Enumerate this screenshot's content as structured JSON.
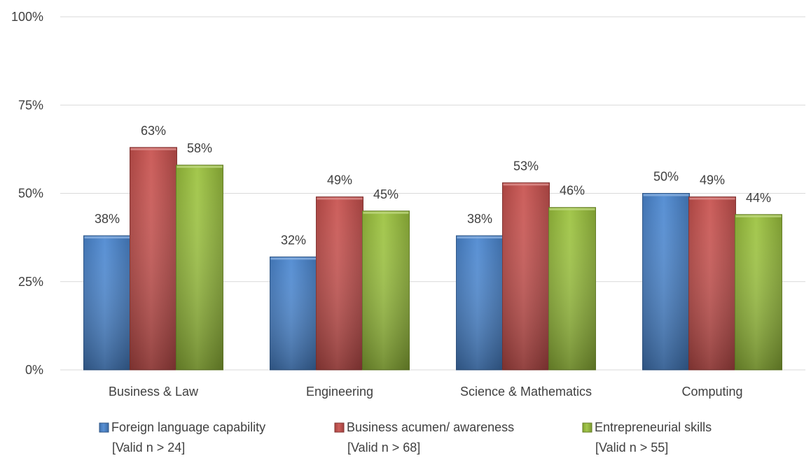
{
  "chart_data": {
    "type": "bar",
    "categories": [
      "Business & Law",
      "Engineering",
      "Science & Mathematics",
      "Computing"
    ],
    "series": [
      {
        "name": "Foreign language capability",
        "note": "[Valid n > 24]",
        "color": "#4a86d0",
        "values": [
          38,
          32,
          38,
          50
        ],
        "labels": [
          "38%",
          "32%",
          "38%",
          "50%"
        ]
      },
      {
        "name": "Business acumen/ awareness",
        "note": "[Valid n > 68]",
        "color": "#c8504d",
        "values": [
          63,
          49,
          53,
          49
        ],
        "labels": [
          "63%",
          "49%",
          "53%",
          "49%"
        ]
      },
      {
        "name": "Entrepreneurial skills",
        "note": "[Valid n > 55]",
        "color": "#9bc23c",
        "values": [
          58,
          45,
          46,
          44
        ],
        "labels": [
          "58%",
          "45%",
          "46%",
          "44%"
        ]
      }
    ],
    "ylim": [
      0,
      100
    ],
    "yticks": [
      0,
      25,
      50,
      75,
      100
    ],
    "ytick_labels": [
      "0%",
      "25%",
      "50%",
      "75%",
      "100%"
    ],
    "grid": true,
    "legend": "bottom"
  }
}
